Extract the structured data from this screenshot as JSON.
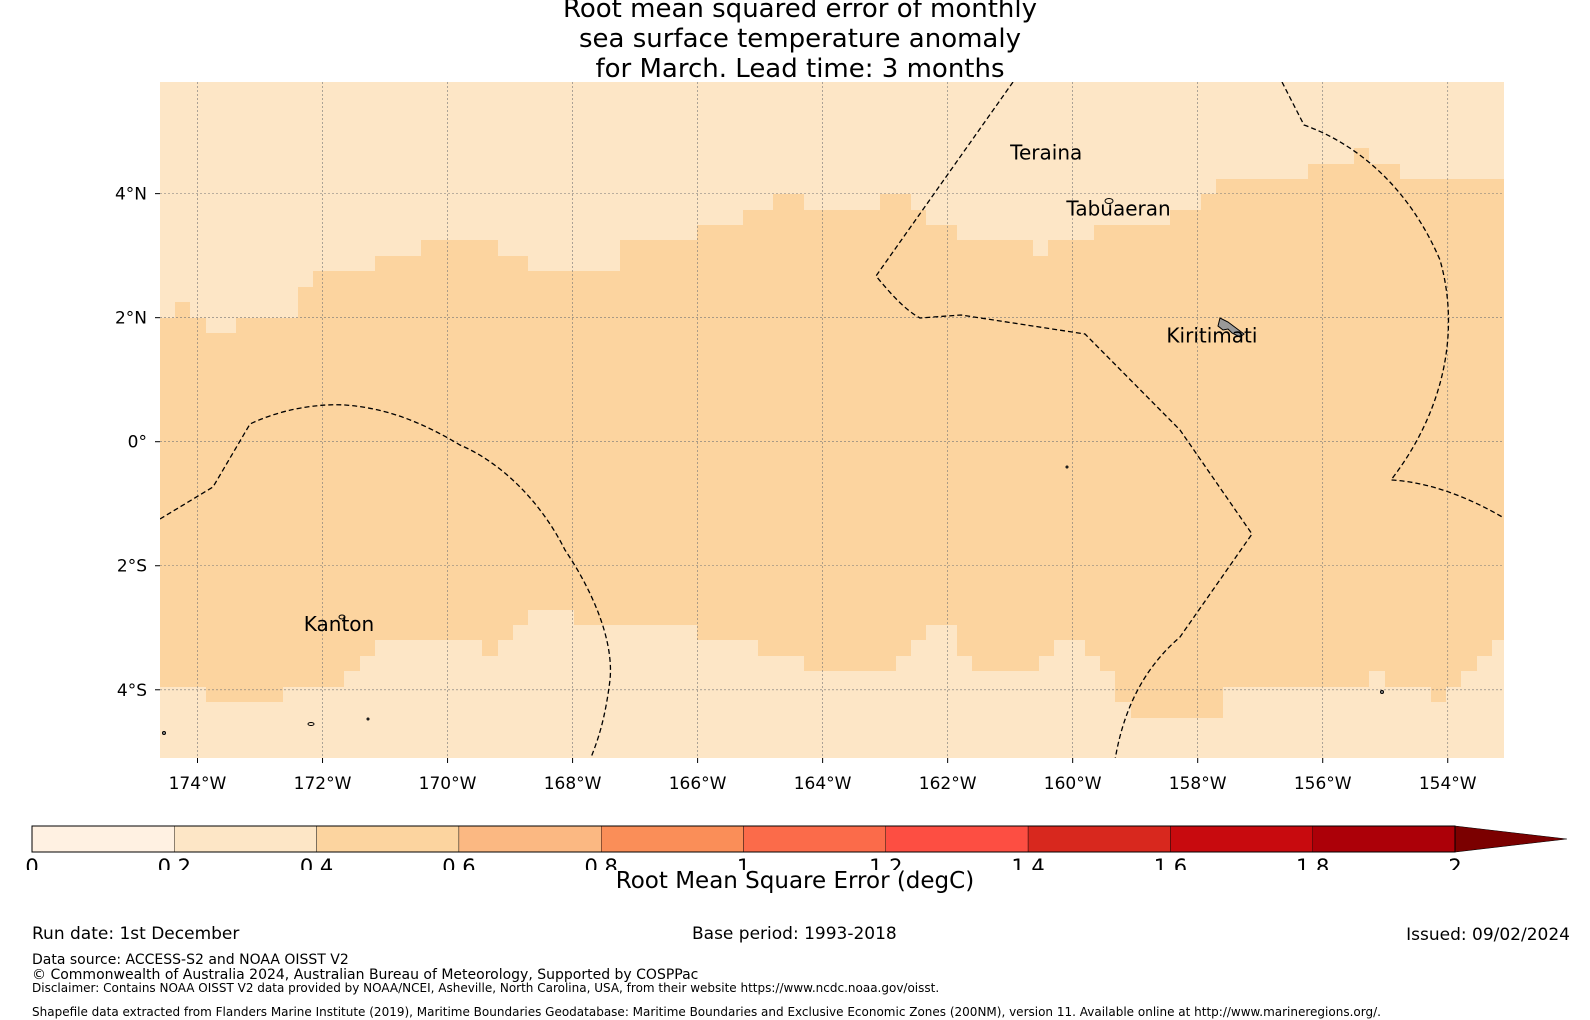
{
  "title": {
    "line1": "Root mean squared error of monthly",
    "line2": "sea surface temperature anomaly",
    "line3": "for March. Lead time: 3 months"
  },
  "map": {
    "lon_range": [
      -174.6,
      -153.1
    ],
    "lat_range": [
      -5.1,
      5.8
    ],
    "lon_ticks": [
      "174°W",
      "172°W",
      "170°W",
      "168°W",
      "166°W",
      "164°W",
      "162°W",
      "160°W",
      "158°W",
      "156°W",
      "154°W"
    ],
    "lat_ticks": [
      "4°N",
      "2°N",
      "0°",
      "2°S",
      "4°S"
    ],
    "places": [
      {
        "name": "Teraina",
        "lon": -161.0,
        "lat": 4.55
      },
      {
        "name": "Tabuaeran",
        "lon": -160.1,
        "lat": 3.65
      },
      {
        "name": "Kiritimati",
        "lon": -158.5,
        "lat": 1.6
      },
      {
        "name": "Kanton",
        "lon": -172.3,
        "lat": -3.05
      }
    ],
    "field_colors": {
      "band_0_2_to_0_4": "#fde6c6",
      "band_0_4_to_0_6": "#fcd49f"
    }
  },
  "colorbar": {
    "title": "Root Mean Square Error (degC)",
    "ticks": [
      "0",
      "0.2",
      "0.4",
      "0.6",
      "0.8",
      "1",
      "1.2",
      "1.4",
      "1.6",
      "1.8",
      "2"
    ],
    "colors": [
      "#fff1e2",
      "#fde6c6",
      "#fcd49f",
      "#fbb882",
      "#fa8e58",
      "#fb6b4a",
      "#fd4e42",
      "#d8281e",
      "#c80a0e",
      "#ac0008"
    ],
    "extend_color": "#7b0000"
  },
  "footer": {
    "run_date": "Run date: 1st December",
    "base_period": "Base period: 1993-2018",
    "issued": "Issued: 09/02/2024",
    "data_source": "Data source: ACCESS-S2 and NOAA OISST V2",
    "copyright": "© Commonwealth of Australia 2024, Australian Bureau of Meteorology, Supported by COSPPac",
    "disclaimer": "Disclaimer: Contains NOAA OISST V2 data provided by NOAA/NCEI, Asheville, North Carolina, USA, from their website https://www.ncdc.noaa.gov/oisst.",
    "shapefile": "Shapefile data extracted from Flanders Marine Institute (2019), Maritime Boundaries Geodatabase: Maritime Boundaries and Exclusive Economic Zones (200NM), version 11. Available online at http://www.marineregions.org/."
  }
}
